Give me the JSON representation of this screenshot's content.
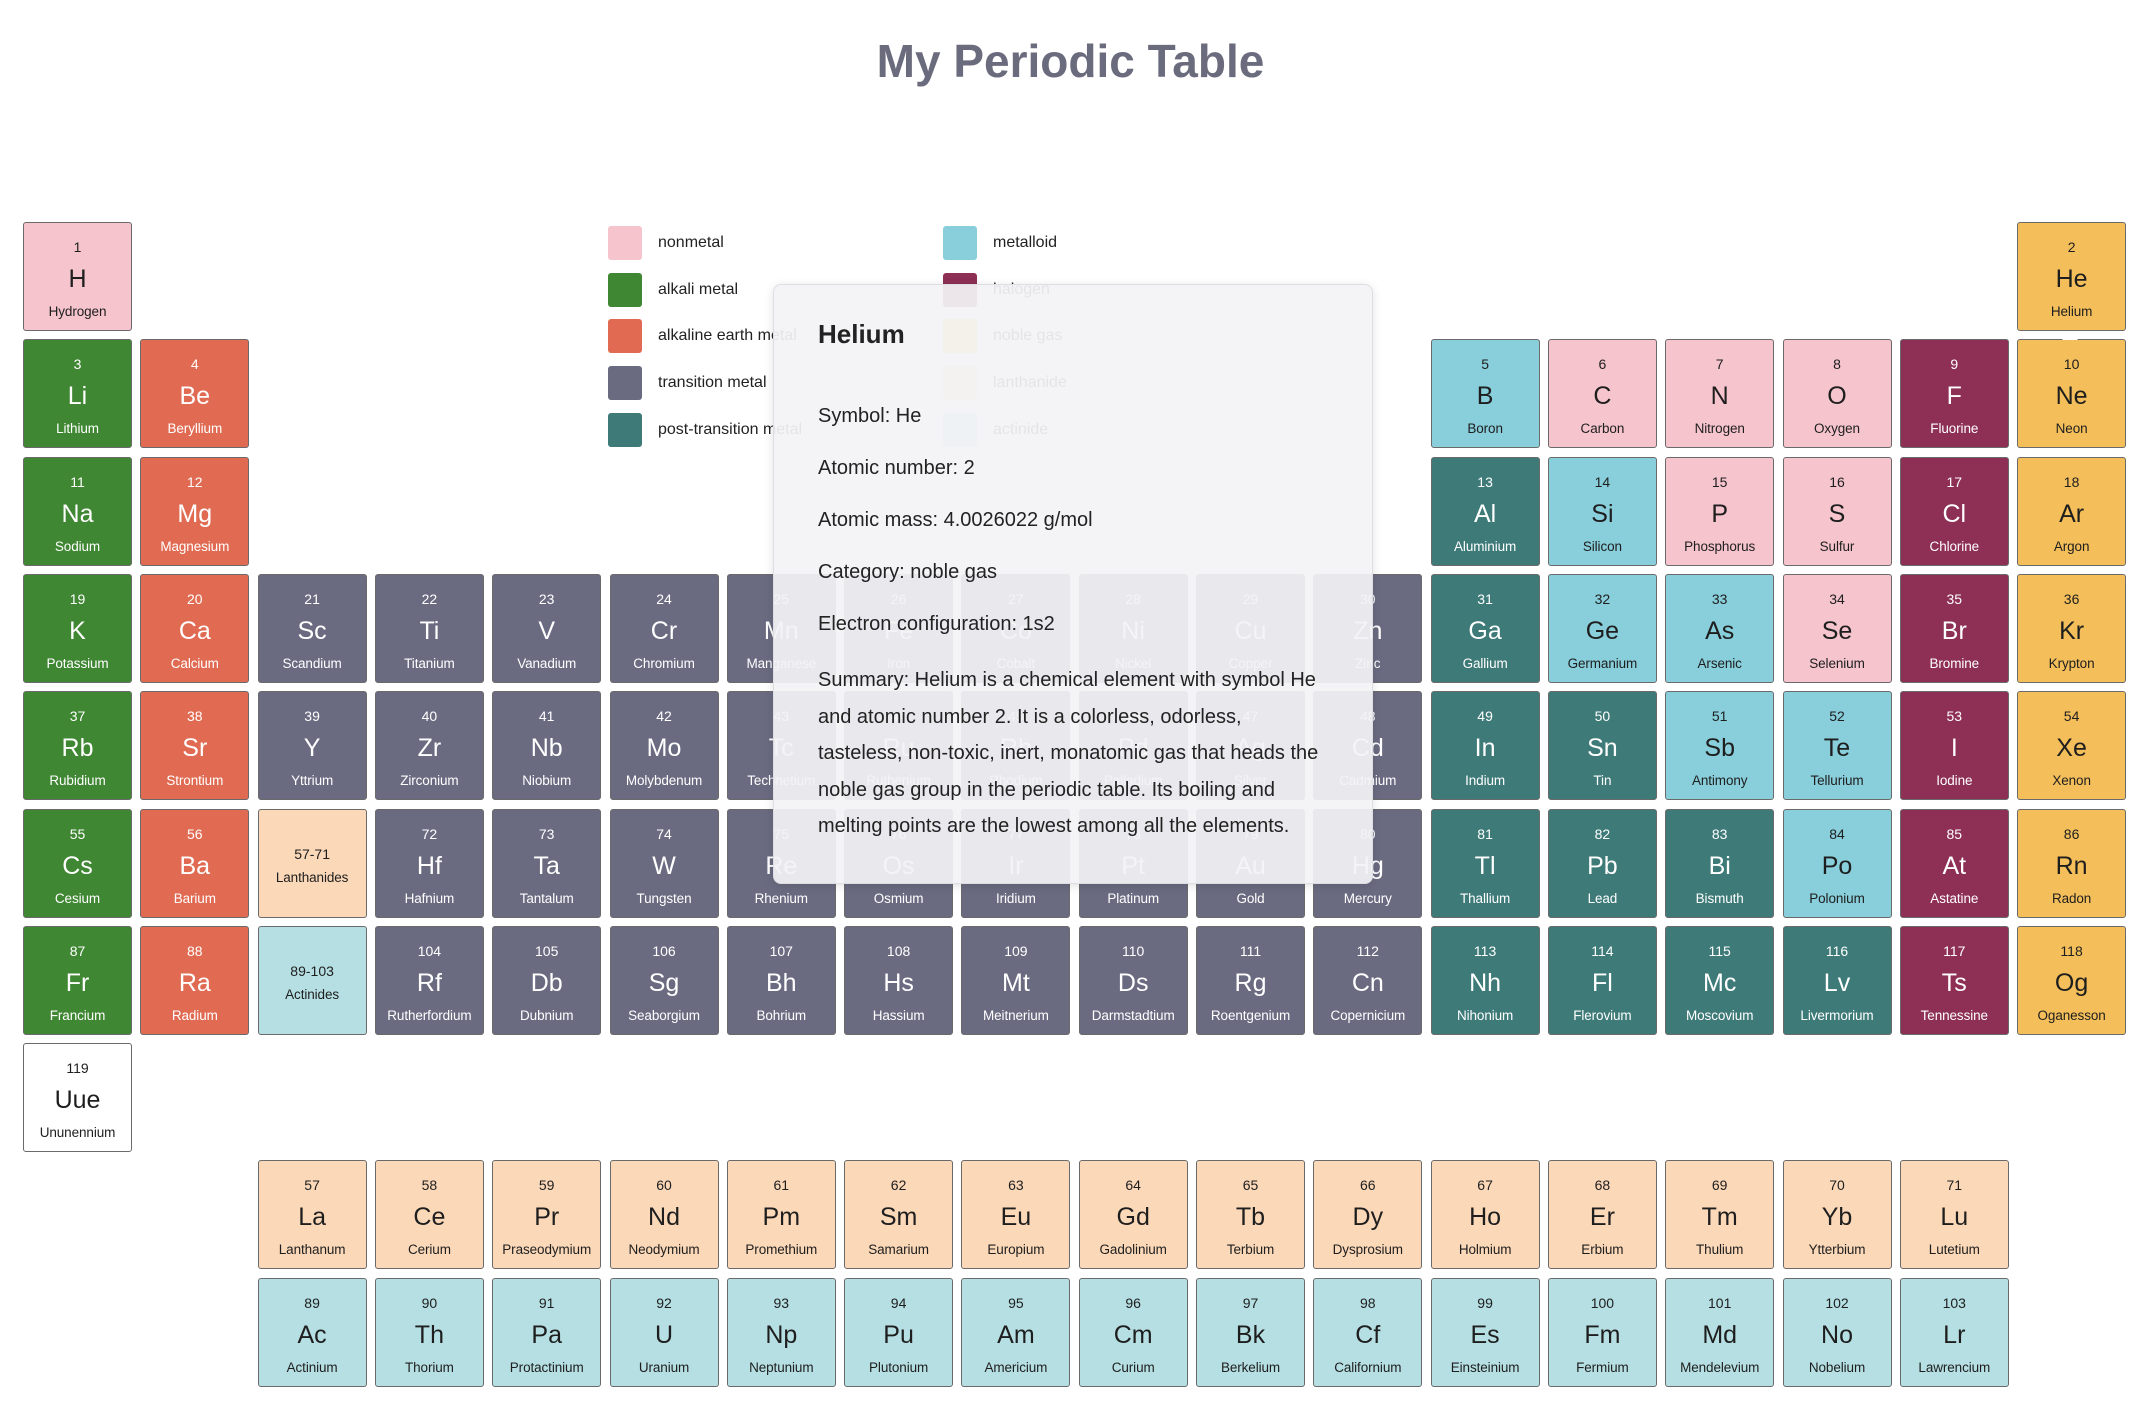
{
  "title": "My Periodic Table",
  "colors": {
    "nonmetal": "#f5c4cd",
    "alkali metal": "#3f8732",
    "alkaline earth metal": "#e06b52",
    "transition metal": "#6a6b81",
    "post-transition metal": "#3d7a78",
    "metalloid": "#88cedb",
    "halogen": "#8e2f55",
    "noble gas": "#f4bf5a",
    "lanthanide": "#fbd8b8",
    "actinide": "#b5dfe3",
    "unknown": "#ffffff"
  },
  "legend": [
    {
      "label": "nonmetal",
      "category": "nonmetal"
    },
    {
      "label": "alkali metal",
      "category": "alkali metal"
    },
    {
      "label": "alkaline earth metal",
      "category": "alkaline earth metal"
    },
    {
      "label": "transition metal",
      "category": "transition metal"
    },
    {
      "label": "post-transition metal",
      "category": "post-transition metal"
    },
    {
      "label": "metalloid",
      "category": "metalloid"
    },
    {
      "label": "halogen",
      "category": "halogen"
    },
    {
      "label": "noble gas",
      "category": "noble gas"
    },
    {
      "label": "lanthanide",
      "category": "lanthanide"
    },
    {
      "label": "actinide",
      "category": "actinide"
    }
  ],
  "placeholders": [
    {
      "number": "57-71",
      "name": "Lanthanides",
      "category": "lanthanide",
      "row": 6,
      "col": 3
    },
    {
      "number": "89-103",
      "name": "Actinides",
      "category": "actinide",
      "row": 7,
      "col": 3
    }
  ],
  "elements": [
    {
      "n": 1,
      "s": "H",
      "name": "Hydrogen",
      "c": "nonmetal",
      "row": 1,
      "col": 1
    },
    {
      "n": 2,
      "s": "He",
      "name": "Helium",
      "c": "noble gas",
      "row": 1,
      "col": 18
    },
    {
      "n": 3,
      "s": "Li",
      "name": "Lithium",
      "c": "alkali metal",
      "row": 2,
      "col": 1
    },
    {
      "n": 4,
      "s": "Be",
      "name": "Beryllium",
      "c": "alkaline earth metal",
      "row": 2,
      "col": 2
    },
    {
      "n": 5,
      "s": "B",
      "name": "Boron",
      "c": "metalloid",
      "row": 2,
      "col": 13
    },
    {
      "n": 6,
      "s": "C",
      "name": "Carbon",
      "c": "nonmetal",
      "row": 2,
      "col": 14
    },
    {
      "n": 7,
      "s": "N",
      "name": "Nitrogen",
      "c": "nonmetal",
      "row": 2,
      "col": 15
    },
    {
      "n": 8,
      "s": "O",
      "name": "Oxygen",
      "c": "nonmetal",
      "row": 2,
      "col": 16
    },
    {
      "n": 9,
      "s": "F",
      "name": "Fluorine",
      "c": "halogen",
      "row": 2,
      "col": 17
    },
    {
      "n": 10,
      "s": "Ne",
      "name": "Neon",
      "c": "noble gas",
      "row": 2,
      "col": 18
    },
    {
      "n": 11,
      "s": "Na",
      "name": "Sodium",
      "c": "alkali metal",
      "row": 3,
      "col": 1
    },
    {
      "n": 12,
      "s": "Mg",
      "name": "Magnesium",
      "c": "alkaline earth metal",
      "row": 3,
      "col": 2
    },
    {
      "n": 13,
      "s": "Al",
      "name": "Aluminium",
      "c": "post-transition metal",
      "row": 3,
      "col": 13
    },
    {
      "n": 14,
      "s": "Si",
      "name": "Silicon",
      "c": "metalloid",
      "row": 3,
      "col": 14
    },
    {
      "n": 15,
      "s": "P",
      "name": "Phosphorus",
      "c": "nonmetal",
      "row": 3,
      "col": 15
    },
    {
      "n": 16,
      "s": "S",
      "name": "Sulfur",
      "c": "nonmetal",
      "row": 3,
      "col": 16
    },
    {
      "n": 17,
      "s": "Cl",
      "name": "Chlorine",
      "c": "halogen",
      "row": 3,
      "col": 17
    },
    {
      "n": 18,
      "s": "Ar",
      "name": "Argon",
      "c": "noble gas",
      "row": 3,
      "col": 18
    },
    {
      "n": 19,
      "s": "K",
      "name": "Potassium",
      "c": "alkali metal",
      "row": 4,
      "col": 1
    },
    {
      "n": 20,
      "s": "Ca",
      "name": "Calcium",
      "c": "alkaline earth metal",
      "row": 4,
      "col": 2
    },
    {
      "n": 21,
      "s": "Sc",
      "name": "Scandium",
      "c": "transition metal",
      "row": 4,
      "col": 3
    },
    {
      "n": 22,
      "s": "Ti",
      "name": "Titanium",
      "c": "transition metal",
      "row": 4,
      "col": 4
    },
    {
      "n": 23,
      "s": "V",
      "name": "Vanadium",
      "c": "transition metal",
      "row": 4,
      "col": 5
    },
    {
      "n": 24,
      "s": "Cr",
      "name": "Chromium",
      "c": "transition metal",
      "row": 4,
      "col": 6
    },
    {
      "n": 25,
      "s": "Mn",
      "name": "Manganese",
      "c": "transition metal",
      "row": 4,
      "col": 7
    },
    {
      "n": 26,
      "s": "Fe",
      "name": "Iron",
      "c": "transition metal",
      "row": 4,
      "col": 8
    },
    {
      "n": 27,
      "s": "Co",
      "name": "Cobalt",
      "c": "transition metal",
      "row": 4,
      "col": 9
    },
    {
      "n": 28,
      "s": "Ni",
      "name": "Nickel",
      "c": "transition metal",
      "row": 4,
      "col": 10
    },
    {
      "n": 29,
      "s": "Cu",
      "name": "Copper",
      "c": "transition metal",
      "row": 4,
      "col": 11
    },
    {
      "n": 30,
      "s": "Zn",
      "name": "Zinc",
      "c": "transition metal",
      "row": 4,
      "col": 12
    },
    {
      "n": 31,
      "s": "Ga",
      "name": "Gallium",
      "c": "post-transition metal",
      "row": 4,
      "col": 13
    },
    {
      "n": 32,
      "s": "Ge",
      "name": "Germanium",
      "c": "metalloid",
      "row": 4,
      "col": 14
    },
    {
      "n": 33,
      "s": "As",
      "name": "Arsenic",
      "c": "metalloid",
      "row": 4,
      "col": 15
    },
    {
      "n": 34,
      "s": "Se",
      "name": "Selenium",
      "c": "nonmetal",
      "row": 4,
      "col": 16
    },
    {
      "n": 35,
      "s": "Br",
      "name": "Bromine",
      "c": "halogen",
      "row": 4,
      "col": 17
    },
    {
      "n": 36,
      "s": "Kr",
      "name": "Krypton",
      "c": "noble gas",
      "row": 4,
      "col": 18
    },
    {
      "n": 37,
      "s": "Rb",
      "name": "Rubidium",
      "c": "alkali metal",
      "row": 5,
      "col": 1
    },
    {
      "n": 38,
      "s": "Sr",
      "name": "Strontium",
      "c": "alkaline earth metal",
      "row": 5,
      "col": 2
    },
    {
      "n": 39,
      "s": "Y",
      "name": "Yttrium",
      "c": "transition metal",
      "row": 5,
      "col": 3
    },
    {
      "n": 40,
      "s": "Zr",
      "name": "Zirconium",
      "c": "transition metal",
      "row": 5,
      "col": 4
    },
    {
      "n": 41,
      "s": "Nb",
      "name": "Niobium",
      "c": "transition metal",
      "row": 5,
      "col": 5
    },
    {
      "n": 42,
      "s": "Mo",
      "name": "Molybdenum",
      "c": "transition metal",
      "row": 5,
      "col": 6
    },
    {
      "n": 43,
      "s": "Tc",
      "name": "Technetium",
      "c": "transition metal",
      "row": 5,
      "col": 7
    },
    {
      "n": 44,
      "s": "Ru",
      "name": "Ruthenium",
      "c": "transition metal",
      "row": 5,
      "col": 8
    },
    {
      "n": 45,
      "s": "Rh",
      "name": "Rhodium",
      "c": "transition metal",
      "row": 5,
      "col": 9
    },
    {
      "n": 46,
      "s": "Pd",
      "name": "Palladium",
      "c": "transition metal",
      "row": 5,
      "col": 10
    },
    {
      "n": 47,
      "s": "Ag",
      "name": "Silver",
      "c": "transition metal",
      "row": 5,
      "col": 11
    },
    {
      "n": 48,
      "s": "Cd",
      "name": "Cadmium",
      "c": "transition metal",
      "row": 5,
      "col": 12
    },
    {
      "n": 49,
      "s": "In",
      "name": "Indium",
      "c": "post-transition metal",
      "row": 5,
      "col": 13
    },
    {
      "n": 50,
      "s": "Sn",
      "name": "Tin",
      "c": "post-transition metal",
      "row": 5,
      "col": 14
    },
    {
      "n": 51,
      "s": "Sb",
      "name": "Antimony",
      "c": "metalloid",
      "row": 5,
      "col": 15
    },
    {
      "n": 52,
      "s": "Te",
      "name": "Tellurium",
      "c": "metalloid",
      "row": 5,
      "col": 16
    },
    {
      "n": 53,
      "s": "I",
      "name": "Iodine",
      "c": "halogen",
      "row": 5,
      "col": 17
    },
    {
      "n": 54,
      "s": "Xe",
      "name": "Xenon",
      "c": "noble gas",
      "row": 5,
      "col": 18
    },
    {
      "n": 55,
      "s": "Cs",
      "name": "Cesium",
      "c": "alkali metal",
      "row": 6,
      "col": 1
    },
    {
      "n": 56,
      "s": "Ba",
      "name": "Barium",
      "c": "alkaline earth metal",
      "row": 6,
      "col": 2
    },
    {
      "n": 72,
      "s": "Hf",
      "name": "Hafnium",
      "c": "transition metal",
      "row": 6,
      "col": 4
    },
    {
      "n": 73,
      "s": "Ta",
      "name": "Tantalum",
      "c": "transition metal",
      "row": 6,
      "col": 5
    },
    {
      "n": 74,
      "s": "W",
      "name": "Tungsten",
      "c": "transition metal",
      "row": 6,
      "col": 6
    },
    {
      "n": 75,
      "s": "Re",
      "name": "Rhenium",
      "c": "transition metal",
      "row": 6,
      "col": 7
    },
    {
      "n": 76,
      "s": "Os",
      "name": "Osmium",
      "c": "transition metal",
      "row": 6,
      "col": 8
    },
    {
      "n": 77,
      "s": "Ir",
      "name": "Iridium",
      "c": "transition metal",
      "row": 6,
      "col": 9
    },
    {
      "n": 78,
      "s": "Pt",
      "name": "Platinum",
      "c": "transition metal",
      "row": 6,
      "col": 10
    },
    {
      "n": 79,
      "s": "Au",
      "name": "Gold",
      "c": "transition metal",
      "row": 6,
      "col": 11
    },
    {
      "n": 80,
      "s": "Hg",
      "name": "Mercury",
      "c": "transition metal",
      "row": 6,
      "col": 12
    },
    {
      "n": 81,
      "s": "Tl",
      "name": "Thallium",
      "c": "post-transition metal",
      "row": 6,
      "col": 13
    },
    {
      "n": 82,
      "s": "Pb",
      "name": "Lead",
      "c": "post-transition metal",
      "row": 6,
      "col": 14
    },
    {
      "n": 83,
      "s": "Bi",
      "name": "Bismuth",
      "c": "post-transition metal",
      "row": 6,
      "col": 15
    },
    {
      "n": 84,
      "s": "Po",
      "name": "Polonium",
      "c": "metalloid",
      "row": 6,
      "col": 16
    },
    {
      "n": 85,
      "s": "At",
      "name": "Astatine",
      "c": "halogen",
      "row": 6,
      "col": 17
    },
    {
      "n": 86,
      "s": "Rn",
      "name": "Radon",
      "c": "noble gas",
      "row": 6,
      "col": 18
    },
    {
      "n": 87,
      "s": "Fr",
      "name": "Francium",
      "c": "alkali metal",
      "row": 7,
      "col": 1
    },
    {
      "n": 88,
      "s": "Ra",
      "name": "Radium",
      "c": "alkaline earth metal",
      "row": 7,
      "col": 2
    },
    {
      "n": 104,
      "s": "Rf",
      "name": "Rutherfordium",
      "c": "transition metal",
      "row": 7,
      "col": 4
    },
    {
      "n": 105,
      "s": "Db",
      "name": "Dubnium",
      "c": "transition metal",
      "row": 7,
      "col": 5
    },
    {
      "n": 106,
      "s": "Sg",
      "name": "Seaborgium",
      "c": "transition metal",
      "row": 7,
      "col": 6
    },
    {
      "n": 107,
      "s": "Bh",
      "name": "Bohrium",
      "c": "transition metal",
      "row": 7,
      "col": 7
    },
    {
      "n": 108,
      "s": "Hs",
      "name": "Hassium",
      "c": "transition metal",
      "row": 7,
      "col": 8
    },
    {
      "n": 109,
      "s": "Mt",
      "name": "Meitnerium",
      "c": "transition metal",
      "row": 7,
      "col": 9
    },
    {
      "n": 110,
      "s": "Ds",
      "name": "Darmstadtium",
      "c": "transition metal",
      "row": 7,
      "col": 10
    },
    {
      "n": 111,
      "s": "Rg",
      "name": "Roentgenium",
      "c": "transition metal",
      "row": 7,
      "col": 11
    },
    {
      "n": 112,
      "s": "Cn",
      "name": "Copernicium",
      "c": "transition metal",
      "row": 7,
      "col": 12
    },
    {
      "n": 113,
      "s": "Nh",
      "name": "Nihonium",
      "c": "post-transition metal",
      "row": 7,
      "col": 13
    },
    {
      "n": 114,
      "s": "Fl",
      "name": "Flerovium",
      "c": "post-transition metal",
      "row": 7,
      "col": 14
    },
    {
      "n": 115,
      "s": "Mc",
      "name": "Moscovium",
      "c": "post-transition metal",
      "row": 7,
      "col": 15
    },
    {
      "n": 116,
      "s": "Lv",
      "name": "Livermorium",
      "c": "post-transition metal",
      "row": 7,
      "col": 16
    },
    {
      "n": 117,
      "s": "Ts",
      "name": "Tennessine",
      "c": "halogen",
      "row": 7,
      "col": 17
    },
    {
      "n": 118,
      "s": "Og",
      "name": "Oganesson",
      "c": "noble gas",
      "row": 7,
      "col": 18
    },
    {
      "n": 119,
      "s": "Uue",
      "name": "Ununennium",
      "c": "unknown",
      "row": 8,
      "col": 1
    },
    {
      "n": 57,
      "s": "La",
      "name": "Lanthanum",
      "c": "lanthanide",
      "row": 9,
      "col": 3
    },
    {
      "n": 58,
      "s": "Ce",
      "name": "Cerium",
      "c": "lanthanide",
      "row": 9,
      "col": 4
    },
    {
      "n": 59,
      "s": "Pr",
      "name": "Praseodymium",
      "c": "lanthanide",
      "row": 9,
      "col": 5
    },
    {
      "n": 60,
      "s": "Nd",
      "name": "Neodymium",
      "c": "lanthanide",
      "row": 9,
      "col": 6
    },
    {
      "n": 61,
      "s": "Pm",
      "name": "Promethium",
      "c": "lanthanide",
      "row": 9,
      "col": 7
    },
    {
      "n": 62,
      "s": "Sm",
      "name": "Samarium",
      "c": "lanthanide",
      "row": 9,
      "col": 8
    },
    {
      "n": 63,
      "s": "Eu",
      "name": "Europium",
      "c": "lanthanide",
      "row": 9,
      "col": 9
    },
    {
      "n": 64,
      "s": "Gd",
      "name": "Gadolinium",
      "c": "lanthanide",
      "row": 9,
      "col": 10
    },
    {
      "n": 65,
      "s": "Tb",
      "name": "Terbium",
      "c": "lanthanide",
      "row": 9,
      "col": 11
    },
    {
      "n": 66,
      "s": "Dy",
      "name": "Dysprosium",
      "c": "lanthanide",
      "row": 9,
      "col": 12
    },
    {
      "n": 67,
      "s": "Ho",
      "name": "Holmium",
      "c": "lanthanide",
      "row": 9,
      "col": 13
    },
    {
      "n": 68,
      "s": "Er",
      "name": "Erbium",
      "c": "lanthanide",
      "row": 9,
      "col": 14
    },
    {
      "n": 69,
      "s": "Tm",
      "name": "Thulium",
      "c": "lanthanide",
      "row": 9,
      "col": 15
    },
    {
      "n": 70,
      "s": "Yb",
      "name": "Ytterbium",
      "c": "lanthanide",
      "row": 9,
      "col": 16
    },
    {
      "n": 71,
      "s": "Lu",
      "name": "Lutetium",
      "c": "lanthanide",
      "row": 9,
      "col": 17
    },
    {
      "n": 89,
      "s": "Ac",
      "name": "Actinium",
      "c": "actinide",
      "row": 10,
      "col": 3
    },
    {
      "n": 90,
      "s": "Th",
      "name": "Thorium",
      "c": "actinide",
      "row": 10,
      "col": 4
    },
    {
      "n": 91,
      "s": "Pa",
      "name": "Protactinium",
      "c": "actinide",
      "row": 10,
      "col": 5
    },
    {
      "n": 92,
      "s": "U",
      "name": "Uranium",
      "c": "actinide",
      "row": 10,
      "col": 6
    },
    {
      "n": 93,
      "s": "Np",
      "name": "Neptunium",
      "c": "actinide",
      "row": 10,
      "col": 7
    },
    {
      "n": 94,
      "s": "Pu",
      "name": "Plutonium",
      "c": "actinide",
      "row": 10,
      "col": 8
    },
    {
      "n": 95,
      "s": "Am",
      "name": "Americium",
      "c": "actinide",
      "row": 10,
      "col": 9
    },
    {
      "n": 96,
      "s": "Cm",
      "name": "Curium",
      "c": "actinide",
      "row": 10,
      "col": 10
    },
    {
      "n": 97,
      "s": "Bk",
      "name": "Berkelium",
      "c": "actinide",
      "row": 10,
      "col": 11
    },
    {
      "n": 98,
      "s": "Cf",
      "name": "Californium",
      "c": "actinide",
      "row": 10,
      "col": 12
    },
    {
      "n": 99,
      "s": "Es",
      "name": "Einsteinium",
      "c": "actinide",
      "row": 10,
      "col": 13
    },
    {
      "n": 100,
      "s": "Fm",
      "name": "Fermium",
      "c": "actinide",
      "row": 10,
      "col": 14
    },
    {
      "n": 101,
      "s": "Md",
      "name": "Mendelevium",
      "c": "actinide",
      "row": 10,
      "col": 15
    },
    {
      "n": 102,
      "s": "No",
      "name": "Nobelium",
      "c": "actinide",
      "row": 10,
      "col": 16
    },
    {
      "n": 103,
      "s": "Lr",
      "name": "Lawrencium",
      "c": "actinide",
      "row": 10,
      "col": 17
    }
  ],
  "tooltip": {
    "name": "Helium",
    "symbol": "Symbol: He",
    "atomic_number": "Atomic number: 2",
    "atomic_mass": "Atomic mass: 4.0026022 g/mol",
    "category": "Category: noble gas",
    "electron_configuration": "Electron configuration: 1s2",
    "summary": "Summary: Helium is a chemical element with symbol He and atomic number 2. It is a colorless, odorless, tasteless, non-toxic, inert, monatomic gas that heads the noble gas group in the periodic table. Its boiling and melting points are the lowest among all the elements."
  }
}
